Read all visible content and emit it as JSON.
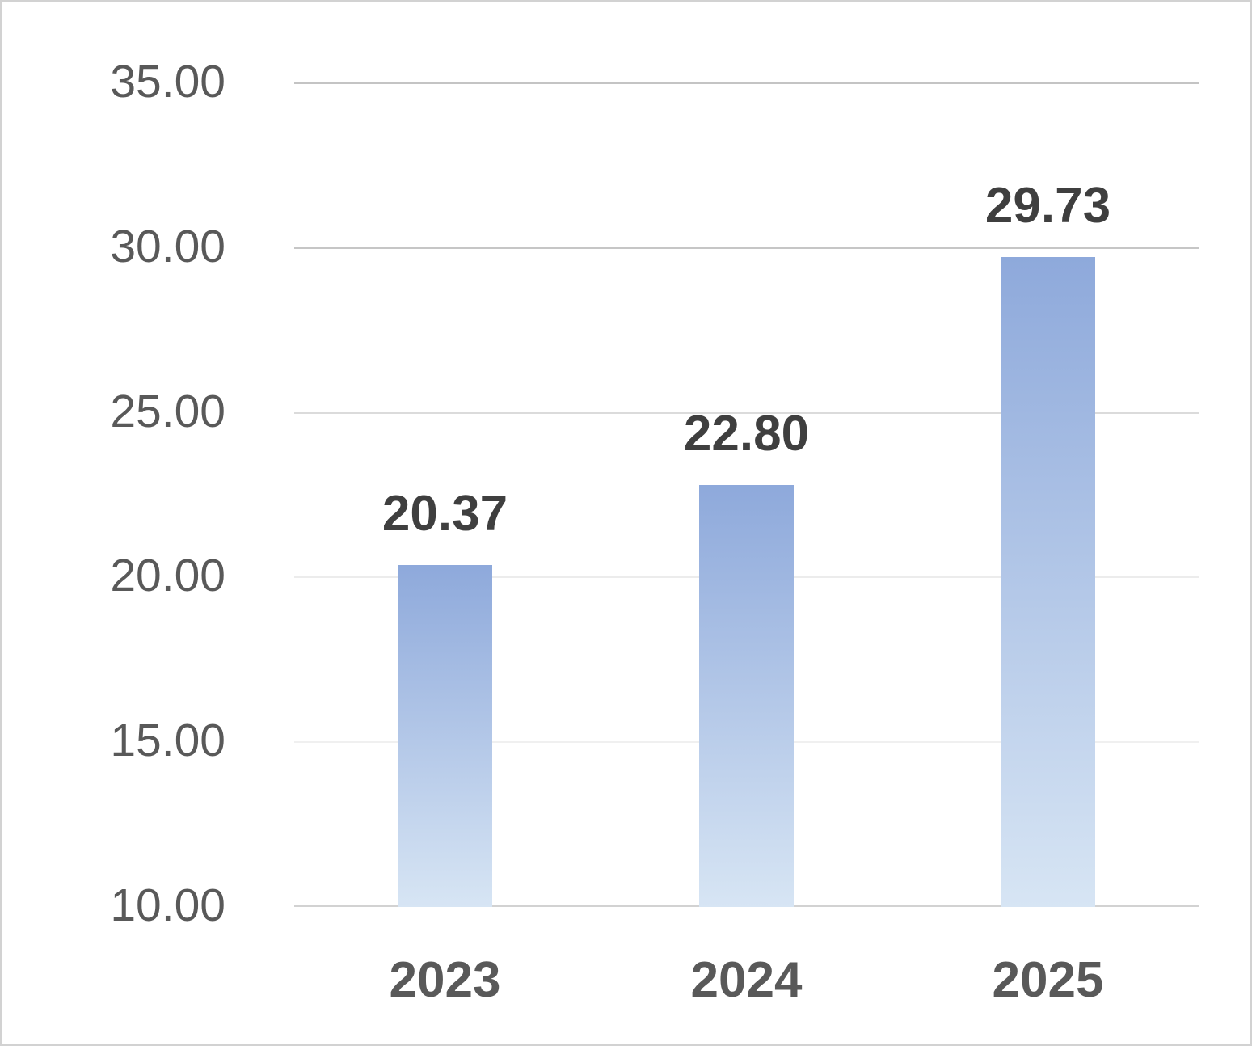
{
  "chart_data": {
    "type": "bar",
    "title": "",
    "xlabel": "",
    "ylabel": "",
    "categories": [
      "2023",
      "2024",
      "2025"
    ],
    "values": [
      20.37,
      22.8,
      29.73
    ],
    "data_labels": [
      "20.37",
      "22.80",
      "29.73"
    ],
    "ylim": [
      10,
      35
    ],
    "grid": "horizontal",
    "legend": "none",
    "y_ticks": [
      {
        "value": 35,
        "label": "35.00",
        "gridline_color": "#c4c4c4"
      },
      {
        "value": 30,
        "label": "30.00",
        "gridline_color": "#c6c6c6"
      },
      {
        "value": 25,
        "label": "25.00",
        "gridline_color": "#dbdbdb"
      },
      {
        "value": 20,
        "label": "20.00",
        "gridline_color": "#ececec"
      },
      {
        "value": 15,
        "label": "15.00",
        "gridline_color": "#f0f0f0"
      },
      {
        "value": 10,
        "label": "10.00",
        "gridline_color": "#d2d2d2",
        "is_axis_line": true
      }
    ],
    "style": {
      "bar_gradient_top": "#8ea9db",
      "bar_gradient_bottom": "#d7e5f4",
      "tick_label_color": "#595959",
      "category_label_color": "#595959",
      "data_label_color": "#3f3f3f",
      "chart_border_color": "#d2d2d2",
      "background": "#ffffff"
    }
  }
}
